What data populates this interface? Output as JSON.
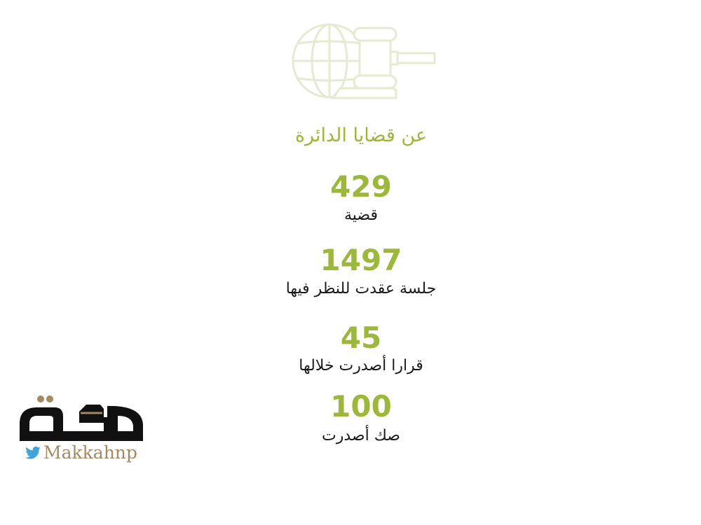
{
  "header": {
    "icon": "globe-gavel-icon",
    "title": "عن قضايا الدائرة"
  },
  "stats": [
    {
      "value": "429",
      "label": "قضية"
    },
    {
      "value": "1497",
      "label": "جلسة عقدت للنظر فيها"
    },
    {
      "value": "45",
      "label": "قرارا أصدرت خلالها"
    },
    {
      "value": "100",
      "label": "صك أصدرت"
    }
  ],
  "logo": {
    "lettering": "مكة",
    "handle": "Makkahnp",
    "icon": "twitter-bird-icon"
  },
  "colors": {
    "accent": "#9bb83a",
    "icon": "#e4ebd0",
    "text": "#1a1a1a",
    "brand": "#a48a62",
    "twitter": "#3fa3dc"
  }
}
